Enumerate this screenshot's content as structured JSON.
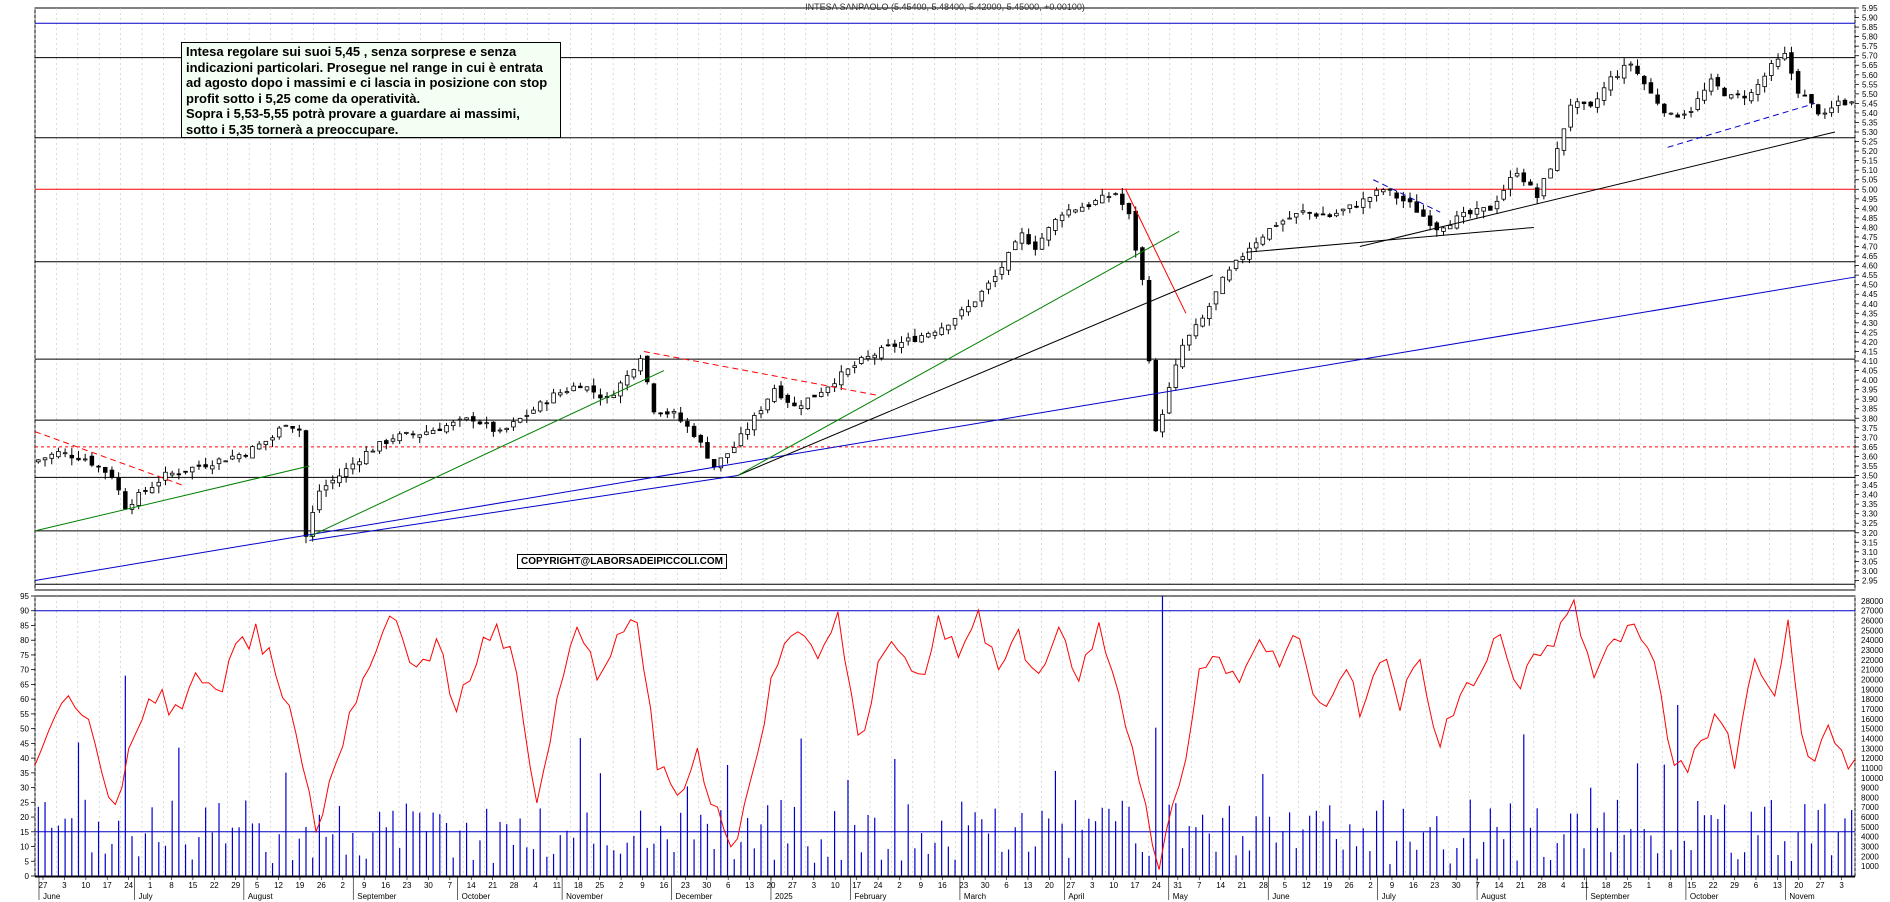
{
  "title": "INTESA SANPAOLO (5.45400, 5.48400, 5.42000, 5.45000, +0.00100)",
  "annotation": {
    "lines": [
      "Intesa regolare sui suoi 5,45 , senza sorprese e senza",
      "indicazioni particolari. Prosegue nel range in cui è entrata",
      "ad agosto dopo i massimi e ci lascia in posizione con stop",
      "profit sotto i 5,25 come da operatività.",
      "Sopra i 5,53-5,55 potrà provare a guardare ai massimi,",
      "sotto i 5,35 tornerà a preoccupare."
    ]
  },
  "copyright": "COPYRIGHT@LABORSADEIPICCOLI.COM",
  "colors": {
    "up": "#000000",
    "down": "#000000",
    "support": "#000000",
    "resistance": "#ff0000",
    "trend_green": "#008000",
    "trend_blue": "#0000cc",
    "grid": "#c0c0c0",
    "rsi": "#ff0000",
    "volume": "#0000cc"
  },
  "chart_data": [
    {
      "type": "candlestick",
      "ylim": [
        2.9,
        5.95
      ],
      "price_ticks": [
        "2.95",
        "3.00",
        "3.05",
        "3.10",
        "3.15",
        "3.20",
        "3.25",
        "3.30",
        "3.35",
        "3.40",
        "3.45",
        "3.50",
        "3.55",
        "3.60",
        "3.65",
        "3.70",
        "3.75",
        "3.80",
        "3.85",
        "3.90",
        "3.95",
        "4.00",
        "4.05",
        "4.10",
        "4.15",
        "4.20",
        "4.25",
        "4.30",
        "4.35",
        "4.40",
        "4.45",
        "4.50",
        "4.55",
        "4.60",
        "4.65",
        "4.70",
        "4.75",
        "4.80",
        "4.85",
        "4.90",
        "4.95",
        "5.00",
        "5.05",
        "5.10",
        "5.15",
        "5.20",
        "5.25",
        "5.30",
        "5.35",
        "5.40",
        "5.45",
        "5.50",
        "5.55",
        "5.60",
        "5.65",
        "5.70",
        "5.75",
        "5.80",
        "5.85",
        "5.90",
        "5.95"
      ],
      "horizontal_levels": [
        {
          "value": 5.87,
          "color": "#0000cc"
        },
        {
          "value": 5.69,
          "color": "#000000"
        },
        {
          "value": 5.27,
          "color": "#000000"
        },
        {
          "value": 5.0,
          "color": "#ff0000"
        },
        {
          "value": 4.62,
          "color": "#000000"
        },
        {
          "value": 4.11,
          "color": "#000000"
        },
        {
          "value": 3.79,
          "color": "#000000"
        },
        {
          "value": 3.65,
          "color": "#ff0000",
          "dashed": true
        },
        {
          "value": 3.49,
          "color": "#000000"
        },
        {
          "value": 3.21,
          "color": "#000000"
        },
        {
          "value": 2.93,
          "color": "#000000"
        }
      ],
      "close_path": [
        [
          0,
          3.57
        ],
        [
          4,
          3.62
        ],
        [
          8,
          3.59
        ],
        [
          12,
          3.5
        ],
        [
          14,
          3.34
        ],
        [
          17,
          3.42
        ],
        [
          20,
          3.5
        ],
        [
          24,
          3.54
        ],
        [
          28,
          3.58
        ],
        [
          32,
          3.62
        ],
        [
          36,
          3.7
        ],
        [
          38,
          3.78
        ],
        [
          40,
          3.74
        ],
        [
          41,
          3.18
        ],
        [
          43,
          3.42
        ],
        [
          46,
          3.5
        ],
        [
          50,
          3.62
        ],
        [
          54,
          3.7
        ],
        [
          58,
          3.72
        ],
        [
          62,
          3.76
        ],
        [
          66,
          3.8
        ],
        [
          70,
          3.72
        ],
        [
          74,
          3.82
        ],
        [
          78,
          3.92
        ],
        [
          82,
          3.98
        ],
        [
          86,
          3.9
        ],
        [
          89,
          4.02
        ],
        [
          91,
          4.13
        ],
        [
          93,
          3.85
        ],
        [
          96,
          3.82
        ],
        [
          99,
          3.72
        ],
        [
          102,
          3.55
        ],
        [
          105,
          3.65
        ],
        [
          108,
          3.8
        ],
        [
          111,
          3.96
        ],
        [
          114,
          3.86
        ],
        [
          117,
          3.92
        ],
        [
          120,
          4.0
        ],
        [
          124,
          4.1
        ],
        [
          128,
          4.17
        ],
        [
          132,
          4.22
        ],
        [
          136,
          4.28
        ],
        [
          140,
          4.38
        ],
        [
          144,
          4.54
        ],
        [
          148,
          4.76
        ],
        [
          150,
          4.7
        ],
        [
          154,
          4.88
        ],
        [
          158,
          4.92
        ],
        [
          162,
          4.98
        ],
        [
          164,
          4.86
        ],
        [
          166,
          4.52
        ],
        [
          168,
          3.72
        ],
        [
          170,
          3.95
        ],
        [
          172,
          4.18
        ],
        [
          175,
          4.32
        ],
        [
          178,
          4.52
        ],
        [
          182,
          4.7
        ],
        [
          186,
          4.82
        ],
        [
          190,
          4.88
        ],
        [
          194,
          4.86
        ],
        [
          198,
          4.92
        ],
        [
          202,
          5.0
        ],
        [
          206,
          4.92
        ],
        [
          210,
          4.8
        ],
        [
          214,
          4.86
        ],
        [
          218,
          4.9
        ],
        [
          222,
          5.1
        ],
        [
          225,
          4.96
        ],
        [
          228,
          5.2
        ],
        [
          230,
          5.45
        ],
        [
          233,
          5.42
        ],
        [
          236,
          5.58
        ],
        [
          239,
          5.66
        ],
        [
          242,
          5.5
        ],
        [
          245,
          5.38
        ],
        [
          248,
          5.42
        ],
        [
          251,
          5.56
        ],
        [
          254,
          5.48
        ],
        [
          257,
          5.5
        ],
        [
          260,
          5.64
        ],
        [
          262,
          5.7
        ],
        [
          264,
          5.52
        ],
        [
          266,
          5.44
        ],
        [
          268,
          5.38
        ],
        [
          270,
          5.46
        ],
        [
          272,
          5.45
        ]
      ],
      "n_bars": 272,
      "trendlines": [
        {
          "color": "#0000cc",
          "points": [
            [
              0,
              2.95
            ],
            [
              272,
              4.54
            ]
          ]
        },
        {
          "color": "#000000",
          "points": [
            [
              105,
              3.5
            ],
            [
              176,
              4.55
            ]
          ]
        },
        {
          "color": "#000000",
          "points": [
            [
              181,
              4.67
            ],
            [
              224,
              4.8
            ]
          ]
        },
        {
          "color": "#000000",
          "points": [
            [
              198,
              4.7
            ],
            [
              269,
              5.3
            ]
          ]
        },
        {
          "color": "#008000",
          "points": [
            [
              0,
              3.21
            ],
            [
              41,
              3.55
            ]
          ]
        },
        {
          "color": "#008000",
          "points": [
            [
              41,
              3.18
            ],
            [
              94,
              4.05
            ]
          ]
        },
        {
          "color": "#008000",
          "points": [
            [
              105,
              3.5
            ],
            [
              171,
              4.78
            ]
          ]
        },
        {
          "color": "#0000cc",
          "points": [
            [
              41,
              3.16
            ],
            [
              105,
              3.5
            ]
          ]
        },
        {
          "color": "#ff0000",
          "points": [
            [
              0,
              3.73
            ],
            [
              22,
              3.45
            ]
          ],
          "dashed": true
        },
        {
          "color": "#ff0000",
          "points": [
            [
              91,
              4.15
            ],
            [
              126,
              3.92
            ]
          ],
          "dashed": true
        },
        {
          "color": "#ff0000",
          "points": [
            [
              163,
              5.0
            ],
            [
              172,
              4.35
            ]
          ]
        },
        {
          "color": "#0000cc",
          "points": [
            [
              200,
              5.05
            ],
            [
              210,
              4.88
            ]
          ],
          "dashed": true
        },
        {
          "color": "#0000cc",
          "points": [
            [
              244,
              5.22
            ],
            [
              266,
              5.45
            ]
          ],
          "dashed": true
        }
      ]
    },
    {
      "type": "line+bar",
      "ylim": [
        0,
        95
      ],
      "rsi_ticks": [
        "0",
        "5",
        "10",
        "15",
        "20",
        "25",
        "30",
        "35",
        "40",
        "45",
        "50",
        "55",
        "60",
        "65",
        "70",
        "75",
        "80",
        "85",
        "90",
        "95"
      ],
      "volume_ticks": [
        "1000",
        "2000",
        "3000",
        "4000",
        "5000",
        "6000",
        "7000",
        "8000",
        "9000",
        "10000",
        "11000",
        "12000",
        "13000",
        "14000",
        "15000",
        "16000",
        "17000",
        "18000",
        "19000",
        "20000",
        "21000",
        "22000",
        "23000",
        "24000",
        "25000",
        "26000",
        "27000",
        "28000"
      ],
      "levels": [
        90,
        15
      ],
      "rsi_path": [
        [
          0,
          35
        ],
        [
          3,
          55
        ],
        [
          6,
          60
        ],
        [
          9,
          45
        ],
        [
          12,
          22
        ],
        [
          15,
          48
        ],
        [
          18,
          62
        ],
        [
          21,
          55
        ],
        [
          24,
          70
        ],
        [
          27,
          60
        ],
        [
          30,
          75
        ],
        [
          33,
          82
        ],
        [
          36,
          70
        ],
        [
          39,
          50
        ],
        [
          42,
          15
        ],
        [
          45,
          40
        ],
        [
          48,
          62
        ],
        [
          51,
          78
        ],
        [
          54,
          88
        ],
        [
          57,
          70
        ],
        [
          60,
          80
        ],
        [
          63,
          55
        ],
        [
          66,
          75
        ],
        [
          69,
          85
        ],
        [
          72,
          70
        ],
        [
          75,
          22
        ],
        [
          78,
          60
        ],
        [
          81,
          82
        ],
        [
          84,
          70
        ],
        [
          87,
          80
        ],
        [
          90,
          88
        ],
        [
          93,
          40
        ],
        [
          96,
          28
        ],
        [
          99,
          40
        ],
        [
          102,
          20
        ],
        [
          105,
          10
        ],
        [
          108,
          45
        ],
        [
          111,
          75
        ],
        [
          114,
          85
        ],
        [
          117,
          70
        ],
        [
          120,
          88
        ],
        [
          123,
          45
        ],
        [
          126,
          70
        ],
        [
          129,
          80
        ],
        [
          132,
          65
        ],
        [
          135,
          85
        ],
        [
          138,
          75
        ],
        [
          141,
          88
        ],
        [
          144,
          70
        ],
        [
          147,
          80
        ],
        [
          150,
          68
        ],
        [
          153,
          82
        ],
        [
          156,
          70
        ],
        [
          159,
          85
        ],
        [
          162,
          65
        ],
        [
          165,
          30
        ],
        [
          168,
          5
        ],
        [
          171,
          30
        ],
        [
          174,
          70
        ],
        [
          177,
          75
        ],
        [
          180,
          65
        ],
        [
          183,
          80
        ],
        [
          186,
          70
        ],
        [
          189,
          82
        ],
        [
          192,
          55
        ],
        [
          195,
          70
        ],
        [
          198,
          58
        ],
        [
          201,
          75
        ],
        [
          204,
          60
        ],
        [
          207,
          70
        ],
        [
          210,
          45
        ],
        [
          213,
          60
        ],
        [
          216,
          70
        ],
        [
          219,
          80
        ],
        [
          222,
          65
        ],
        [
          225,
          75
        ],
        [
          228,
          85
        ],
        [
          230,
          92
        ],
        [
          233,
          68
        ],
        [
          236,
          80
        ],
        [
          239,
          85
        ],
        [
          242,
          70
        ],
        [
          245,
          35
        ],
        [
          248,
          40
        ],
        [
          251,
          55
        ],
        [
          254,
          40
        ],
        [
          257,
          70
        ],
        [
          260,
          60
        ],
        [
          262,
          88
        ],
        [
          264,
          45
        ],
        [
          266,
          35
        ],
        [
          268,
          50
        ],
        [
          270,
          40
        ],
        [
          272,
          40
        ]
      ],
      "volume_bars_note": "",
      "x_month_labels": [
        "June",
        "July",
        "August",
        "September",
        "October",
        "November",
        "December",
        "2025",
        "February",
        "March",
        "April",
        "May",
        "June",
        "July",
        "August",
        "September",
        "October",
        "Novem"
      ],
      "x_month_positions": [
        0.4,
        10,
        21,
        32,
        42.5,
        53,
        64,
        74,
        82,
        93,
        103.5,
        114,
        124,
        135,
        145,
        156,
        166,
        176
      ],
      "x_day_labels": [
        "27",
        "3",
        "10",
        "17",
        "24",
        "1",
        "8",
        "15",
        "22",
        "29",
        "5",
        "12",
        "19",
        "26",
        "2",
        "9",
        "16",
        "23",
        "30",
        "7",
        "14",
        "21",
        "28",
        "4",
        "11",
        "18",
        "25",
        "2",
        "9",
        "16",
        "23",
        "30",
        "6",
        "13",
        "20",
        "27",
        "3",
        "10",
        "17",
        "24",
        "2",
        "9",
        "16",
        "23",
        "30",
        "6",
        "13",
        "20",
        "27",
        "3",
        "10",
        "17",
        "24",
        "31",
        "7",
        "14",
        "21",
        "28",
        "5",
        "12",
        "19",
        "26",
        "2",
        "9",
        "16",
        "23",
        "30",
        "7",
        "14",
        "21",
        "28",
        "4",
        "11",
        "18",
        "25",
        "1",
        "8",
        "15",
        "22",
        "29",
        "6",
        "13",
        "20",
        "27",
        "3"
      ]
    }
  ]
}
